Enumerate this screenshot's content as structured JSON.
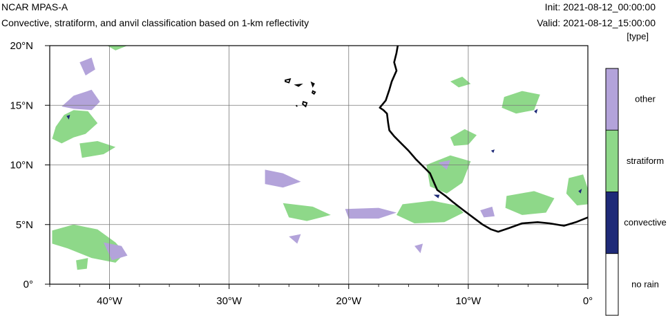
{
  "header": {
    "title": "NCAR MPAS-A",
    "subtitle": "Convective, stratiform, and anvil classification based on 1-km reflectivity",
    "init": "Init: 2021-08-12_00:00:00",
    "valid": "Valid: 2021-08-12_15:00:00",
    "units": "[type]"
  },
  "map": {
    "lon_range": [
      -45,
      0
    ],
    "lat_range": [
      0,
      20
    ],
    "lon_ticks": [
      {
        "value": -40,
        "label": "40°W"
      },
      {
        "value": -30,
        "label": "30°W"
      },
      {
        "value": -20,
        "label": "20°W"
      },
      {
        "value": -10,
        "label": "10°W"
      },
      {
        "value": 0,
        "label": "0°"
      }
    ],
    "lat_ticks": [
      {
        "value": 20,
        "label": "20°N"
      },
      {
        "value": 15,
        "label": "15°N"
      },
      {
        "value": 10,
        "label": "10°N"
      },
      {
        "value": 5,
        "label": "5°N"
      },
      {
        "value": 0,
        "label": "0°"
      }
    ],
    "gridlines": true,
    "colors": {
      "other": "#b3a3da",
      "stratiform": "#8ed889",
      "convective": "#1e2a78",
      "no_rain": "#ffffff"
    },
    "coastline": [
      [
        -15.9,
        20
      ],
      [
        -16.0,
        19.4
      ],
      [
        -16.2,
        18.6
      ],
      [
        -16.0,
        17.9
      ],
      [
        -16.4,
        17.0
      ],
      [
        -16.6,
        16.3
      ],
      [
        -16.9,
        15.4
      ],
      [
        -17.4,
        14.8
      ],
      [
        -17.1,
        14.6
      ],
      [
        -16.8,
        14.3
      ],
      [
        -16.7,
        13.5
      ],
      [
        -16.6,
        12.9
      ],
      [
        -16.2,
        12.4
      ],
      [
        -15.6,
        11.8
      ],
      [
        -15.0,
        11.2
      ],
      [
        -14.4,
        10.5
      ],
      [
        -13.7,
        9.8
      ],
      [
        -13.2,
        9.3
      ],
      [
        -12.9,
        8.6
      ],
      [
        -12.6,
        7.9
      ],
      [
        -11.9,
        7.4
      ],
      [
        -11.3,
        6.9
      ],
      [
        -10.4,
        6.2
      ],
      [
        -9.6,
        5.6
      ],
      [
        -8.8,
        5.0
      ],
      [
        -8.1,
        4.6
      ],
      [
        -7.5,
        4.4
      ],
      [
        -6.6,
        4.7
      ],
      [
        -5.5,
        5.1
      ],
      [
        -4.2,
        5.2
      ],
      [
        -3.2,
        5.1
      ],
      [
        -2.0,
        4.9
      ],
      [
        -1.0,
        5.2
      ],
      [
        0,
        5.6
      ]
    ],
    "islands": [
      [
        [
          -25.3,
          17.1
        ],
        [
          -24.9,
          17.2
        ],
        [
          -25.0,
          16.9
        ],
        [
          -25.3,
          17.0
        ]
      ],
      [
        [
          -24.4,
          16.7
        ],
        [
          -24.0,
          16.75
        ],
        [
          -24.2,
          16.6
        ]
      ],
      [
        [
          -23.1,
          16.9
        ],
        [
          -22.9,
          16.8
        ],
        [
          -23.0,
          16.6
        ]
      ],
      [
        [
          -23.0,
          16.2
        ],
        [
          -22.8,
          16.1
        ],
        [
          -22.9,
          15.95
        ],
        [
          -23.05,
          16.05
        ]
      ],
      [
        [
          -23.8,
          15.3
        ],
        [
          -23.5,
          15.2
        ],
        [
          -23.6,
          14.9
        ],
        [
          -23.85,
          15.1
        ]
      ],
      [
        [
          -24.4,
          15.0
        ],
        [
          -24.3,
          14.9
        ]
      ]
    ],
    "regions": [
      {
        "type": "stratiform",
        "points": [
          [
            -44.5,
            13.2
          ],
          [
            -43.8,
            14.2
          ],
          [
            -43.0,
            14.6
          ],
          [
            -41.8,
            14.5
          ],
          [
            -41.0,
            13.5
          ],
          [
            -42.0,
            12.6
          ],
          [
            -43.0,
            12.3
          ],
          [
            -44.0,
            11.8
          ],
          [
            -44.8,
            12.2
          ]
        ]
      },
      {
        "type": "stratiform",
        "points": [
          [
            -42.5,
            11.8
          ],
          [
            -41.0,
            12.0
          ],
          [
            -39.5,
            11.5
          ],
          [
            -40.5,
            10.9
          ],
          [
            -42.3,
            10.6
          ]
        ]
      },
      {
        "type": "other",
        "points": [
          [
            -44.0,
            14.9
          ],
          [
            -43.0,
            15.8
          ],
          [
            -41.5,
            16.3
          ],
          [
            -40.8,
            15.3
          ],
          [
            -41.5,
            14.6
          ],
          [
            -43.0,
            14.7
          ]
        ]
      },
      {
        "type": "other",
        "points": [
          [
            -42.5,
            18.6
          ],
          [
            -41.5,
            19.0
          ],
          [
            -41.2,
            18.0
          ],
          [
            -42.0,
            17.5
          ]
        ]
      },
      {
        "type": "stratiform",
        "points": [
          [
            -40.2,
            20
          ],
          [
            -38.5,
            20
          ],
          [
            -39.5,
            19.6
          ]
        ]
      },
      {
        "type": "stratiform",
        "points": [
          [
            -44.8,
            4.5
          ],
          [
            -43.0,
            5.0
          ],
          [
            -41.0,
            4.6
          ],
          [
            -39.5,
            3.5
          ],
          [
            -38.7,
            2.6
          ],
          [
            -39.5,
            1.8
          ],
          [
            -41.5,
            2.2
          ],
          [
            -43.5,
            3.0
          ],
          [
            -44.8,
            3.4
          ]
        ]
      },
      {
        "type": "other",
        "points": [
          [
            -40.5,
            3.5
          ],
          [
            -39.0,
            3.2
          ],
          [
            -38.5,
            2.4
          ],
          [
            -39.8,
            2.0
          ]
        ]
      },
      {
        "type": "stratiform",
        "points": [
          [
            -42.8,
            2.0
          ],
          [
            -41.8,
            2.2
          ],
          [
            -41.9,
            1.3
          ],
          [
            -42.7,
            1.2
          ]
        ]
      },
      {
        "type": "other",
        "points": [
          [
            -27.0,
            9.6
          ],
          [
            -25.5,
            9.3
          ],
          [
            -24.0,
            8.6
          ],
          [
            -25.5,
            8.1
          ],
          [
            -27.0,
            8.4
          ]
        ]
      },
      {
        "type": "stratiform",
        "points": [
          [
            -25.5,
            6.8
          ],
          [
            -23.0,
            6.5
          ],
          [
            -21.5,
            5.8
          ],
          [
            -23.5,
            5.3
          ],
          [
            -25.0,
            5.6
          ]
        ]
      },
      {
        "type": "other",
        "points": [
          [
            -20.3,
            6.3
          ],
          [
            -17.5,
            6.4
          ],
          [
            -16.0,
            6.0
          ],
          [
            -17.5,
            5.5
          ],
          [
            -20.0,
            5.5
          ]
        ]
      },
      {
        "type": "stratiform",
        "points": [
          [
            -15.5,
            6.7
          ],
          [
            -13.0,
            7.0
          ],
          [
            -11.0,
            6.6
          ],
          [
            -10.4,
            6.0
          ],
          [
            -12.0,
            5.2
          ],
          [
            -14.5,
            5.1
          ],
          [
            -16.0,
            5.8
          ]
        ]
      },
      {
        "type": "stratiform",
        "points": [
          [
            -13.5,
            10.0
          ],
          [
            -11.5,
            10.8
          ],
          [
            -9.8,
            10.3
          ],
          [
            -10.5,
            8.5
          ],
          [
            -11.8,
            7.6
          ],
          [
            -13.2,
            8.2
          ]
        ]
      },
      {
        "type": "stratiform",
        "points": [
          [
            -11.5,
            12.3
          ],
          [
            -10.3,
            13.0
          ],
          [
            -9.3,
            12.5
          ],
          [
            -10.0,
            11.7
          ],
          [
            -11.2,
            11.6
          ]
        ]
      },
      {
        "type": "stratiform",
        "points": [
          [
            -7.0,
            15.7
          ],
          [
            -5.5,
            16.2
          ],
          [
            -4.0,
            15.9
          ],
          [
            -4.5,
            14.6
          ],
          [
            -6.0,
            14.3
          ],
          [
            -7.2,
            14.8
          ]
        ]
      },
      {
        "type": "stratiform",
        "points": [
          [
            -6.8,
            7.4
          ],
          [
            -4.5,
            7.8
          ],
          [
            -2.8,
            7.2
          ],
          [
            -3.5,
            6.0
          ],
          [
            -5.5,
            5.8
          ],
          [
            -6.9,
            6.4
          ]
        ]
      },
      {
        "type": "stratiform",
        "points": [
          [
            -1.6,
            8.9
          ],
          [
            -0.4,
            9.2
          ],
          [
            0,
            8.0
          ],
          [
            0,
            6.7
          ],
          [
            -0.9,
            6.6
          ],
          [
            -1.8,
            7.6
          ]
        ]
      },
      {
        "type": "stratiform",
        "points": [
          [
            -11.5,
            17.0
          ],
          [
            -10.5,
            17.4
          ],
          [
            -9.8,
            16.8
          ],
          [
            -10.8,
            16.5
          ]
        ]
      },
      {
        "type": "other",
        "points": [
          [
            -12.5,
            10.2
          ],
          [
            -11.5,
            10.4
          ],
          [
            -11.8,
            9.6
          ]
        ]
      },
      {
        "type": "other",
        "points": [
          [
            -9.0,
            6.2
          ],
          [
            -8.0,
            6.5
          ],
          [
            -7.8,
            5.7
          ],
          [
            -8.7,
            5.6
          ]
        ]
      },
      {
        "type": "other",
        "points": [
          [
            -25.0,
            4.0
          ],
          [
            -24.0,
            4.2
          ],
          [
            -24.3,
            3.4
          ]
        ]
      },
      {
        "type": "other",
        "points": [
          [
            -14.5,
            3.2
          ],
          [
            -13.8,
            3.4
          ],
          [
            -14.0,
            2.6
          ]
        ]
      },
      {
        "type": "convective",
        "points": [
          [
            -12.9,
            7.5
          ],
          [
            -12.4,
            7.5
          ],
          [
            -12.5,
            7.2
          ]
        ]
      },
      {
        "type": "convective",
        "points": [
          [
            -43.6,
            14.1
          ],
          [
            -43.3,
            14.2
          ],
          [
            -43.4,
            13.8
          ]
        ]
      },
      {
        "type": "convective",
        "points": [
          [
            -8.1,
            11.2
          ],
          [
            -7.8,
            11.3
          ],
          [
            -7.9,
            11.0
          ]
        ]
      },
      {
        "type": "convective",
        "points": [
          [
            -4.5,
            14.5
          ],
          [
            -4.2,
            14.7
          ],
          [
            -4.3,
            14.3
          ]
        ]
      },
      {
        "type": "convective",
        "points": [
          [
            -0.8,
            7.8
          ],
          [
            -0.5,
            8.0
          ],
          [
            -0.6,
            7.6
          ]
        ]
      }
    ]
  },
  "colorbar": {
    "entries": [
      {
        "label": "other",
        "color": "#b3a3da"
      },
      {
        "label": "stratiform",
        "color": "#8ed889"
      },
      {
        "label": "convective",
        "color": "#1e2a78"
      },
      {
        "label": "no rain",
        "color": "#ffffff"
      }
    ]
  }
}
